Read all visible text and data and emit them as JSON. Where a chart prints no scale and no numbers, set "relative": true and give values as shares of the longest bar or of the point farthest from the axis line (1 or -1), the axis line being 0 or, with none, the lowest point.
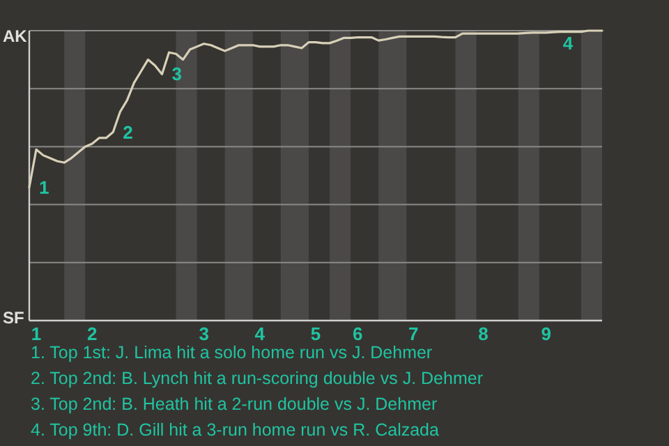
{
  "chart_data": {
    "type": "line",
    "relative": true,
    "categories": [
      null,
      "1",
      null,
      null,
      null,
      null,
      null,
      null,
      null,
      "2",
      null,
      null,
      null,
      null,
      null,
      null,
      null,
      null,
      null,
      null,
      null,
      null,
      null,
      null,
      null,
      "3",
      null,
      null,
      null,
      null,
      null,
      null,
      null,
      "4",
      null,
      null,
      null,
      null,
      null,
      null,
      null,
      "5",
      null,
      null,
      null,
      null,
      null,
      "6",
      null,
      null,
      null,
      null,
      null,
      null,
      null,
      "7",
      null,
      null,
      null,
      null,
      null,
      null,
      null,
      null,
      null,
      "8",
      null,
      null,
      null,
      null,
      null,
      null,
      null,
      null,
      "9",
      null,
      null,
      null,
      null,
      null,
      null,
      null,
      null
    ],
    "series": [
      {
        "color": "#d8d0b8",
        "values": [
          0.46,
          0.59,
          0.57,
          0.56,
          0.55,
          0.545,
          0.56,
          0.58,
          0.6,
          0.61,
          0.63,
          0.63,
          0.65,
          0.72,
          0.76,
          0.82,
          0.86,
          0.9,
          0.88,
          0.85,
          0.925,
          0.92,
          0.9,
          0.935,
          0.945,
          0.955,
          0.95,
          0.94,
          0.93,
          0.94,
          0.95,
          0.95,
          0.95,
          0.945,
          0.945,
          0.945,
          0.95,
          0.95,
          0.945,
          0.94,
          0.96,
          0.96,
          0.957,
          0.957,
          0.965,
          0.975,
          0.975,
          0.977,
          0.977,
          0.977,
          0.966,
          0.97,
          0.975,
          0.98,
          0.98,
          0.98,
          0.98,
          0.98,
          0.98,
          0.978,
          0.977,
          0.977,
          0.99,
          0.99,
          0.99,
          0.99,
          0.99,
          0.99,
          0.99,
          0.99,
          0.99,
          0.992,
          0.993,
          0.993,
          0.993,
          0.995,
          0.996,
          0.996,
          0.996,
          0.996,
          1,
          1,
          1
        ]
      }
    ],
    "grid": "y",
    "annotations": [
      "1",
      "2",
      "3",
      "4",
      "AK",
      "SF",
      "1. Top 1st: J. Lima hit a solo home run vs J. Dehmer",
      "2. Top 2nd: B. Lynch hit a run-scoring double vs J. Dehmer",
      "3. Top 2nd: B. Heath hit a 2-run double vs J. Dehmer",
      "4. Top 9th: D. Gill hit a 3-run home run vs R. Calzada"
    ]
  }
}
